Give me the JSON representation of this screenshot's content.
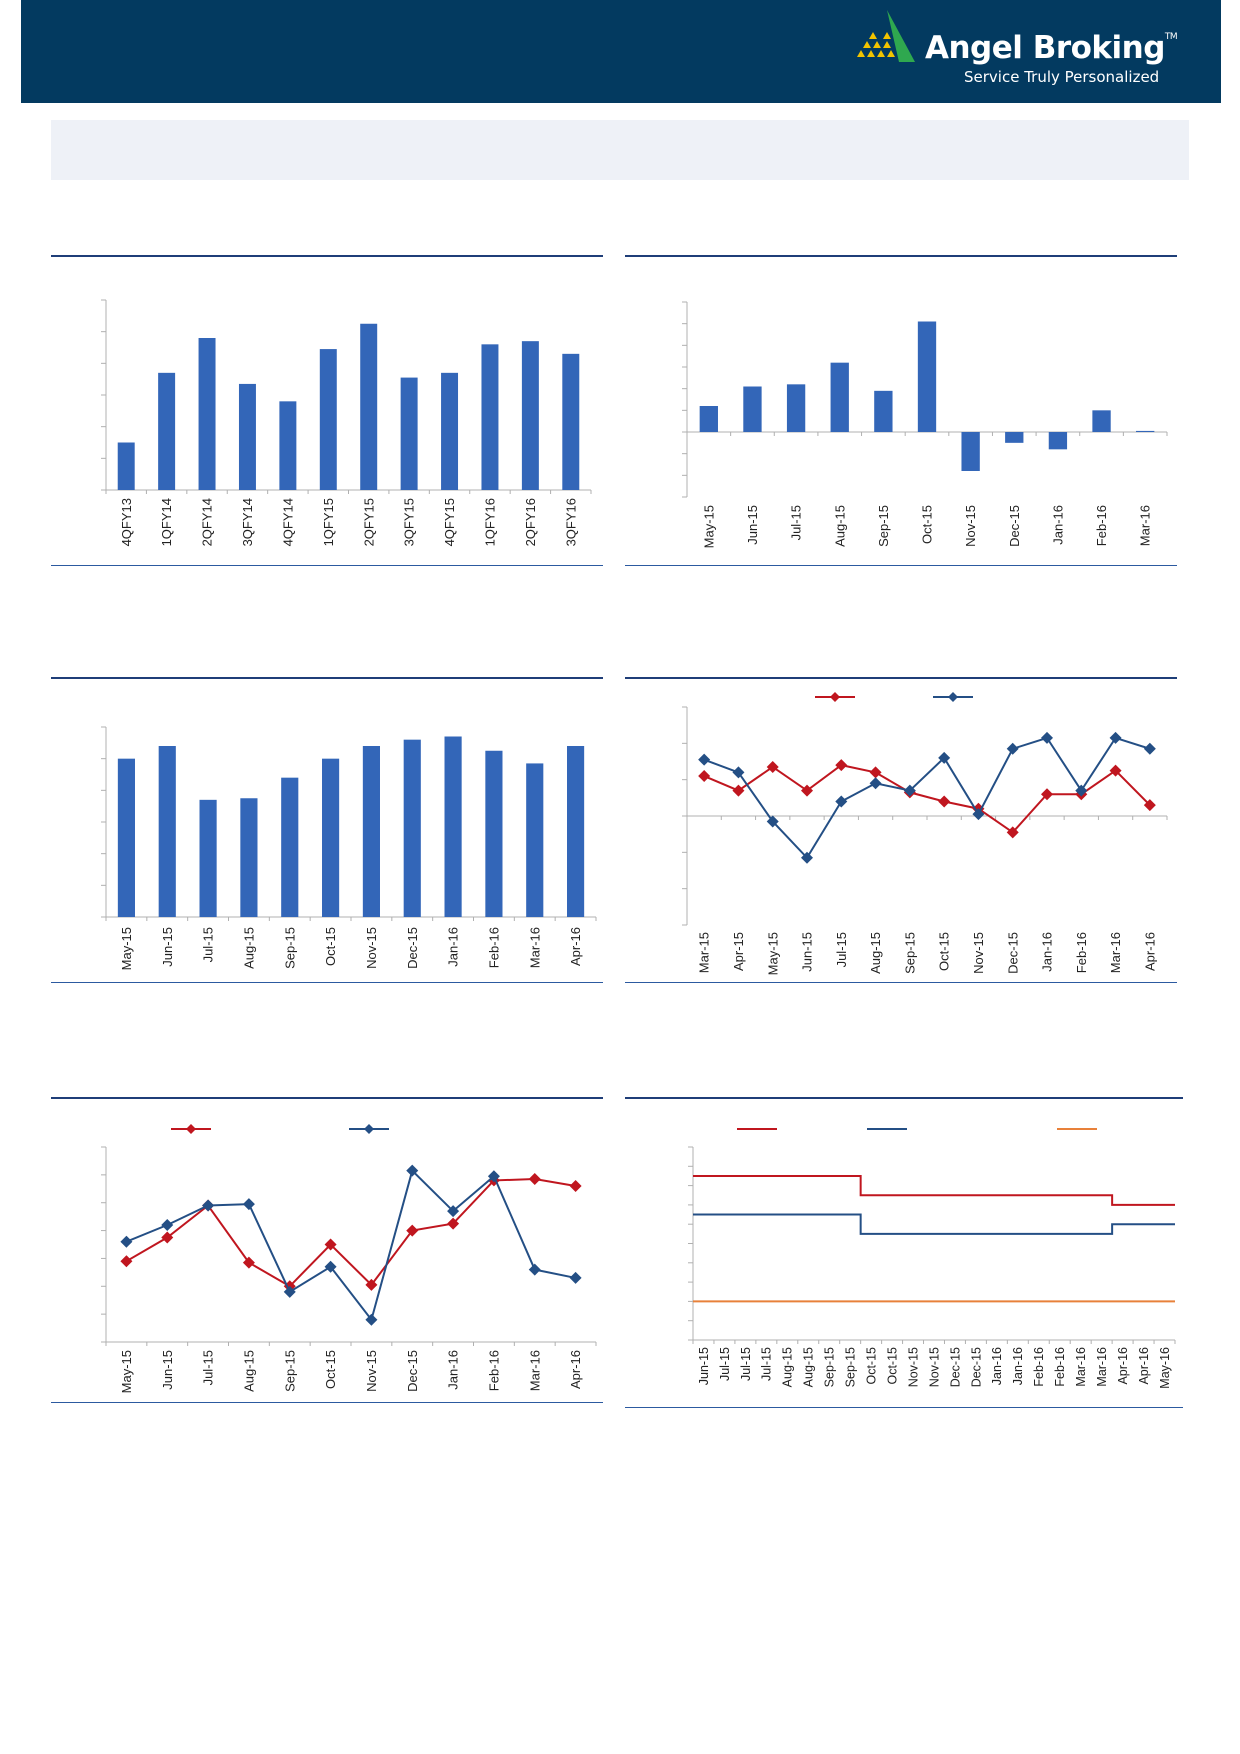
{
  "header": {
    "brand": "Angel Broking",
    "trademark": "TM",
    "tagline": "Service Truly Personalized",
    "colors": {
      "background": "#033a60",
      "logo_green": "#2fa84f",
      "logo_yellow": "#f2c400"
    }
  },
  "chart_data": [
    {
      "id": "chart1",
      "type": "bar",
      "categories": [
        "4QFY13",
        "1QFY14",
        "2QFY14",
        "3QFY14",
        "4QFY14",
        "1QFY15",
        "2QFY15",
        "3QFY15",
        "4QFY15",
        "1QFY16",
        "2QFY16",
        "3QFY16"
      ],
      "values": [
        1.5,
        3.7,
        4.8,
        3.35,
        2.8,
        4.45,
        5.25,
        3.55,
        3.7,
        4.6,
        4.7,
        4.3
      ],
      "ylim": [
        0,
        6
      ],
      "grid": false,
      "color": "#3366b8"
    },
    {
      "id": "chart2",
      "type": "bar",
      "categories": [
        "May-15",
        "Jun-15",
        "Jul-15",
        "Aug-15",
        "Sep-15",
        "Oct-15",
        "Nov-15",
        "Dec-15",
        "Jan-16",
        "Feb-16",
        "Mar-16"
      ],
      "values": [
        1.2,
        2.1,
        2.2,
        3.2,
        1.9,
        5.1,
        -1.8,
        -0.5,
        -0.8,
        1.0,
        0.05
      ],
      "ylim": [
        -3,
        6
      ],
      "grid": false,
      "color": "#3366b8"
    },
    {
      "id": "chart3",
      "type": "bar",
      "categories": [
        "May-15",
        "Jun-15",
        "Jul-15",
        "Aug-15",
        "Sep-15",
        "Oct-15",
        "Nov-15",
        "Dec-15",
        "Jan-16",
        "Feb-16",
        "Mar-16",
        "Apr-16"
      ],
      "values": [
        5.0,
        5.4,
        3.7,
        3.75,
        4.4,
        5.0,
        5.4,
        5.6,
        5.7,
        5.25,
        4.85,
        5.4
      ],
      "ylim": [
        0,
        6
      ],
      "grid": false,
      "color": "#3366b8"
    },
    {
      "id": "chart4",
      "type": "line",
      "x": [
        "Mar-15",
        "Apr-15",
        "May-15",
        "Jun-15",
        "Jul-15",
        "Aug-15",
        "Sep-15",
        "Oct-15",
        "Nov-15",
        "Dec-15",
        "Jan-16",
        "Feb-16",
        "Mar-16",
        "Apr-16"
      ],
      "series": [
        {
          "color": "#c0161f",
          "values": [
            1.1,
            0.7,
            1.35,
            0.7,
            1.4,
            1.2,
            0.65,
            0.4,
            0.2,
            -0.45,
            0.6,
            0.6,
            1.25,
            0.3
          ]
        },
        {
          "color": "#244f85",
          "values": [
            1.55,
            1.2,
            -0.15,
            -1.15,
            0.4,
            0.9,
            0.7,
            1.6,
            0.05,
            1.85,
            2.15,
            0.7,
            2.15,
            1.85
          ]
        }
      ],
      "ylim": [
        -3,
        3
      ],
      "grid": false,
      "legend": "top"
    },
    {
      "id": "chart5",
      "type": "line",
      "x": [
        "May-15",
        "Jun-15",
        "Jul-15",
        "Aug-15",
        "Sep-15",
        "Oct-15",
        "Nov-15",
        "Dec-15",
        "Jan-16",
        "Feb-16",
        "Mar-16",
        "Apr-16"
      ],
      "series": [
        {
          "color": "#c0161f",
          "values": [
            2.9,
            3.75,
            4.9,
            2.85,
            2.0,
            3.5,
            2.05,
            4.0,
            4.25,
            5.8,
            5.85,
            5.6
          ]
        },
        {
          "color": "#244f85",
          "values": [
            3.6,
            4.2,
            4.9,
            4.95,
            1.8,
            2.7,
            0.8,
            6.15,
            4.7,
            5.95,
            2.6,
            2.3
          ]
        }
      ],
      "ylim": [
        0,
        7
      ],
      "grid": false,
      "legend": "top"
    },
    {
      "id": "chart6",
      "type": "line",
      "x": [
        "Jun-15",
        "Jul-15",
        "Jul-15",
        "Jul-15",
        "Aug-15",
        "Aug-15",
        "Sep-15",
        "Sep-15",
        "Oct-15",
        "Oct-15",
        "Nov-15",
        "Nov-15",
        "Dec-15",
        "Dec-15",
        "Jan-16",
        "Jan-16",
        "Feb-16",
        "Feb-16",
        "Mar-16",
        "Mar-16",
        "Apr-16",
        "Apr-16",
        "May-16"
      ],
      "series": [
        {
          "color": "#c0161f",
          "values": [
            7.25,
            7.25,
            7.25,
            7.25,
            7.25,
            7.25,
            7.25,
            7.25,
            6.75,
            6.75,
            6.75,
            6.75,
            6.75,
            6.75,
            6.75,
            6.75,
            6.75,
            6.75,
            6.75,
            6.75,
            6.5,
            6.5,
            6.5
          ]
        },
        {
          "color": "#244f85",
          "values": [
            6.25,
            6.25,
            6.25,
            6.25,
            6.25,
            6.25,
            6.25,
            6.25,
            5.75,
            5.75,
            5.75,
            5.75,
            5.75,
            5.75,
            5.75,
            5.75,
            5.75,
            5.75,
            5.75,
            5.75,
            6.0,
            6.0,
            6.0
          ]
        },
        {
          "color": "#e8813a",
          "values": [
            4.0,
            4.0,
            4.0,
            4.0,
            4.0,
            4.0,
            4.0,
            4.0,
            4.0,
            4.0,
            4.0,
            4.0,
            4.0,
            4.0,
            4.0,
            4.0,
            4.0,
            4.0,
            4.0,
            4.0,
            4.0,
            4.0,
            4.0
          ]
        }
      ],
      "ylim": [
        3,
        8
      ],
      "grid": false,
      "legend": "top"
    }
  ]
}
